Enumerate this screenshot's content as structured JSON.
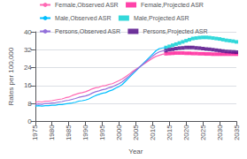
{
  "chart_data": {
    "type": "line",
    "xlabel": "Year",
    "ylabel": "Rates per 100,000",
    "xlim": [
      1975,
      2035
    ],
    "xticks": [
      1975,
      1980,
      1985,
      1990,
      1995,
      2000,
      2005,
      2010,
      2015,
      2020,
      2025,
      2030,
      2035
    ],
    "ylim": [
      0,
      40
    ],
    "yticks": [
      0,
      8,
      16,
      24,
      32,
      40
    ],
    "grid": true,
    "legend": "top",
    "series": [
      {
        "name": "Female,Observed ASR",
        "type": "line",
        "line_style": "solid",
        "color": "#FF69B4",
        "x": [
          1975,
          1976,
          1977,
          1978,
          1979,
          1980,
          1981,
          1982,
          1983,
          1984,
          1985,
          1986,
          1987,
          1988,
          1989,
          1990,
          1991,
          1992,
          1993,
          1994,
          1995,
          1996,
          1997,
          1998,
          1999,
          2000,
          2001,
          2002,
          2003,
          2004,
          2005,
          2006,
          2007,
          2008,
          2009,
          2010,
          2011,
          2012,
          2013,
          2014
        ],
        "values": [
          8.5,
          8.8,
          8.6,
          9.0,
          9.0,
          9.2,
          9.5,
          9.8,
          10.0,
          10.5,
          10.8,
          11.5,
          12.0,
          12.5,
          12.8,
          13.2,
          13.8,
          14.5,
          15.0,
          15.2,
          15.8,
          16.0,
          16.5,
          16.8,
          17.5,
          18.2,
          19.0,
          20.0,
          21.0,
          22.2,
          23.2,
          24.2,
          25.2,
          26.2,
          27.2,
          28.2,
          29.0,
          29.5,
          30.0,
          30.2
        ]
      },
      {
        "name": "Male,Observed ASR",
        "type": "line",
        "line_style": "solid",
        "color": "#00BFFF",
        "x": [
          1975,
          1976,
          1977,
          1978,
          1979,
          1980,
          1981,
          1982,
          1983,
          1984,
          1985,
          1986,
          1987,
          1988,
          1989,
          1990,
          1991,
          1992,
          1993,
          1994,
          1995,
          1996,
          1997,
          1998,
          1999,
          2000,
          2001,
          2002,
          2003,
          2004,
          2005,
          2006,
          2007,
          2008,
          2009,
          2010,
          2011,
          2012,
          2013,
          2014
        ],
        "values": [
          6.8,
          7.0,
          6.8,
          7.0,
          7.0,
          7.2,
          7.2,
          7.5,
          7.5,
          7.8,
          8.0,
          8.2,
          8.5,
          9.0,
          9.2,
          9.5,
          10.0,
          10.8,
          11.5,
          12.0,
          12.5,
          12.8,
          13.5,
          14.0,
          14.8,
          15.5,
          16.5,
          18.0,
          19.5,
          21.0,
          22.5,
          24.0,
          25.5,
          27.0,
          28.5,
          30.0,
          31.5,
          32.5,
          32.8,
          33.0
        ]
      },
      {
        "name": "Persons,Observed ASR",
        "type": "line",
        "line_style": "solid",
        "color": "#9370DB",
        "x": [
          1975,
          1976,
          1977,
          1978,
          1979,
          1980,
          1981,
          1982,
          1983,
          1984,
          1985,
          1986,
          1987,
          1988,
          1989,
          1990,
          1991,
          1992,
          1993,
          1994,
          1995,
          1996,
          1997,
          1998,
          1999,
          2000,
          2001,
          2002,
          2003,
          2004,
          2005,
          2006,
          2007,
          2008,
          2009,
          2010,
          2011,
          2012,
          2013,
          2014
        ],
        "values": [
          7.5,
          7.8,
          7.6,
          8.0,
          8.0,
          8.2,
          8.3,
          8.6,
          8.8,
          9.2,
          9.4,
          9.8,
          10.2,
          10.7,
          11.0,
          11.3,
          11.8,
          12.6,
          13.2,
          13.6,
          14.1,
          14.4,
          15.0,
          15.4,
          16.1,
          16.8,
          17.7,
          19.0,
          20.2,
          21.6,
          22.8,
          24.1,
          25.3,
          26.6,
          27.8,
          29.1,
          30.2,
          31.0,
          31.4,
          31.6
        ]
      },
      {
        "name": "Female,Projected ASR",
        "type": "scatter",
        "marker": "square",
        "color": "#FF1493",
        "x": [
          2014,
          2015,
          2016,
          2017,
          2018,
          2019,
          2020,
          2021,
          2022,
          2023,
          2024,
          2025,
          2026,
          2027,
          2028,
          2029,
          2030,
          2031,
          2032,
          2033,
          2034,
          2035
        ],
        "values": [
          30.2,
          30.3,
          30.4,
          30.5,
          30.5,
          30.5,
          30.4,
          30.4,
          30.3,
          30.3,
          30.2,
          30.2,
          30.1,
          30.1,
          30.0,
          30.0,
          30.0,
          30.0,
          30.0,
          30.0,
          30.0,
          30.0
        ]
      },
      {
        "name": "Male,Projected ASR",
        "type": "scatter",
        "marker": "square",
        "color": "#00CED1",
        "x": [
          2014,
          2015,
          2016,
          2017,
          2018,
          2019,
          2020,
          2021,
          2022,
          2023,
          2024,
          2025,
          2026,
          2027,
          2028,
          2029,
          2030,
          2031,
          2032,
          2033,
          2034,
          2035
        ],
        "values": [
          33.0,
          33.5,
          34.0,
          34.5,
          35.0,
          35.5,
          36.0,
          36.5,
          37.0,
          37.2,
          37.4,
          37.5,
          37.5,
          37.4,
          37.2,
          37.0,
          36.8,
          36.5,
          36.2,
          36.0,
          35.8,
          35.5
        ]
      },
      {
        "name": "Persons,Projected ASR",
        "type": "scatter",
        "marker": "square",
        "color": "#4B0082",
        "x": [
          2014,
          2015,
          2016,
          2017,
          2018,
          2019,
          2020,
          2021,
          2022,
          2023,
          2024,
          2025,
          2026,
          2027,
          2028,
          2029,
          2030,
          2031,
          2032,
          2033,
          2034,
          2035
        ],
        "values": [
          31.6,
          32.0,
          32.2,
          32.5,
          32.7,
          32.8,
          33.0,
          33.0,
          33.0,
          32.8,
          32.7,
          32.5,
          32.3,
          32.2,
          32.0,
          31.8,
          31.6,
          31.4,
          31.2,
          31.1,
          31.0,
          30.9
        ]
      }
    ]
  }
}
